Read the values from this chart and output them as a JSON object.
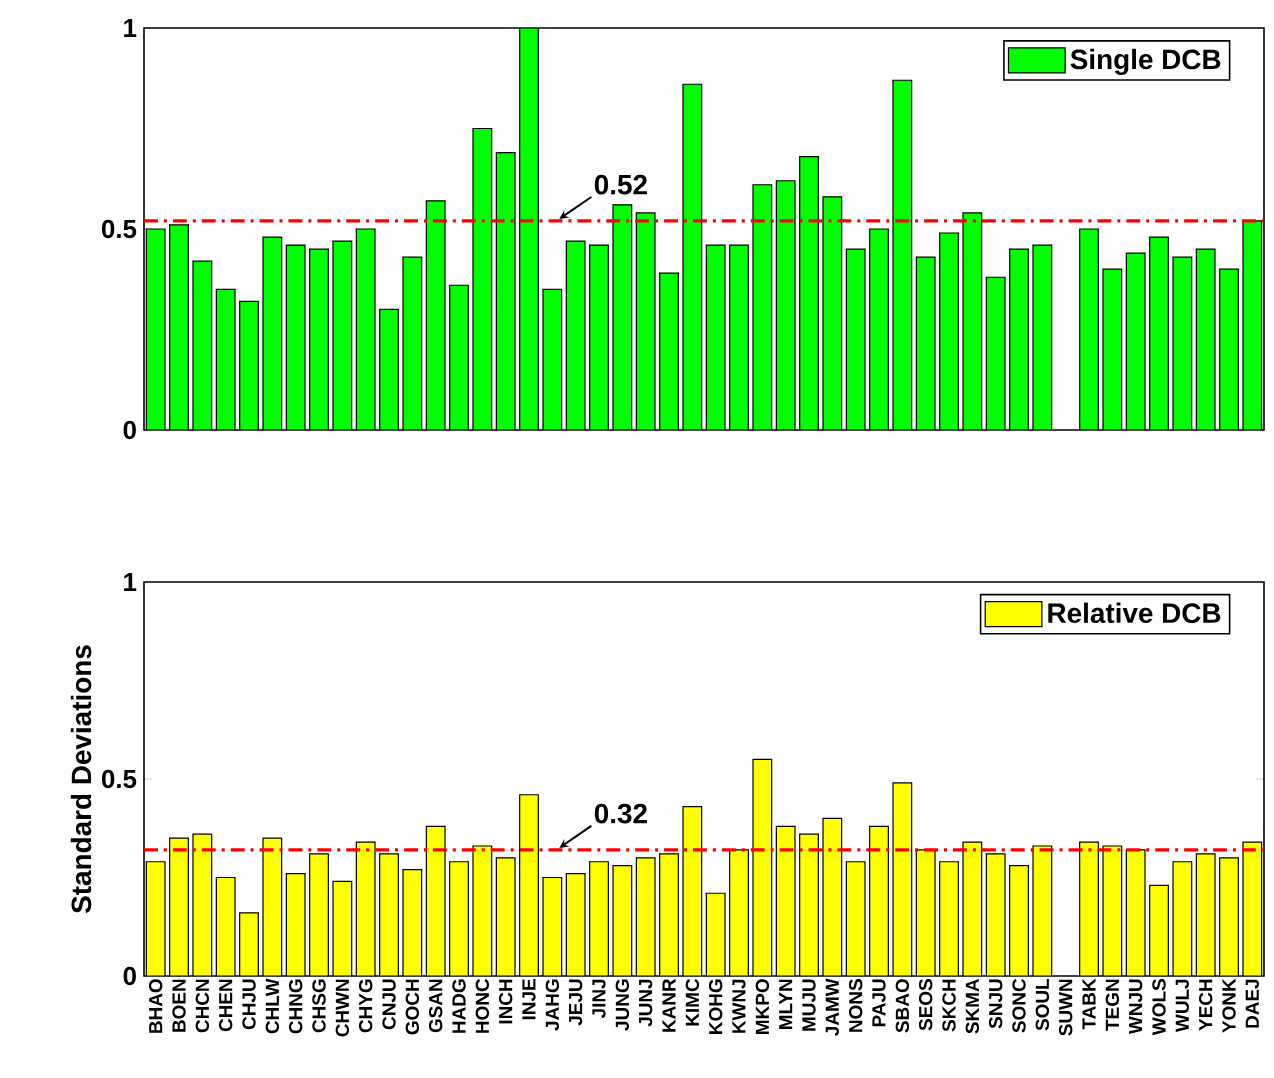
{
  "chart_data": [
    {
      "type": "bar",
      "categories": [
        null,
        null,
        null,
        null,
        null,
        null,
        null,
        null,
        null,
        null,
        null,
        null,
        null,
        null,
        null,
        null,
        null,
        null,
        null,
        null,
        null,
        null,
        null,
        null,
        null,
        null,
        null,
        null,
        null,
        null,
        null,
        null,
        null,
        null,
        null,
        null,
        null,
        null,
        null,
        null,
        null,
        null,
        null,
        null,
        null,
        null,
        null,
        null
      ],
      "series": [
        {
          "name": "Single DCB",
          "color": "#00ff00",
          "values": [
            0.5,
            0.51,
            0.42,
            0.35,
            0.32,
            0.48,
            0.46,
            0.45,
            0.47,
            0.5,
            0.3,
            0.43,
            0.57,
            0.36,
            0.75,
            0.69,
            1.0,
            0.35,
            0.47,
            0.46,
            0.56,
            0.54,
            0.39,
            0.86,
            0.46,
            0.46,
            0.61,
            0.62,
            0.68,
            0.58,
            0.45,
            0.5,
            0.87,
            0.43,
            0.49,
            0.54,
            0.38,
            0.45,
            0.46,
            null,
            0.5,
            0.4,
            0.44,
            0.48,
            0.43,
            0.45,
            0.4,
            0.52
          ]
        }
      ],
      "ylim": [
        0,
        1
      ],
      "yticks": [
        0,
        0.5,
        1
      ],
      "tick_labels": "y",
      "legend": "top right",
      "ref_lines": [
        {
          "axis": "y",
          "value": 0.52,
          "label": "0.52",
          "color": "#ff0000",
          "line_style": "dashdot"
        }
      ]
    },
    {
      "type": "bar",
      "ylabel": "Standard Deviations",
      "categories": [
        "BHAO",
        "BOEN",
        "CHCN",
        "CHEN",
        "CHJU",
        "CHLW",
        "CHNG",
        "CHSG",
        "CHWN",
        "CHYG",
        "CNJU",
        "GOCH",
        "GSAN",
        "HADG",
        "HONC",
        "INCH",
        "INJE",
        "JAHG",
        "JEJU",
        "JINJ",
        "JUNG",
        "JUNJ",
        "KANR",
        "KIMC",
        "KOHG",
        "KWNJ",
        "MKPO",
        "MLYN",
        "MUJU",
        "JAMW",
        "NONS",
        "PAJU",
        "SBAO",
        "SEOS",
        "SKCH",
        "SKMA",
        "SNJU",
        "SONC",
        "SOUL",
        "SUWN",
        "TABK",
        "TEGN",
        "WNJU",
        "WOLS",
        "WULJ",
        "YECH",
        "YONK",
        "DAEJ"
      ],
      "series": [
        {
          "name": "Relative DCB",
          "color": "#ffff00",
          "values": [
            0.29,
            0.35,
            0.36,
            0.25,
            0.16,
            0.35,
            0.26,
            0.31,
            0.24,
            0.34,
            0.31,
            0.27,
            0.38,
            0.29,
            0.33,
            0.3,
            0.46,
            0.25,
            0.26,
            0.29,
            0.28,
            0.3,
            0.31,
            0.43,
            0.21,
            0.32,
            0.55,
            0.38,
            0.36,
            0.4,
            0.29,
            0.38,
            0.49,
            0.32,
            0.29,
            0.34,
            0.31,
            0.28,
            0.33,
            null,
            0.34,
            0.33,
            0.32,
            0.23,
            0.29,
            0.31,
            0.3,
            0.34
          ]
        }
      ],
      "ylim": [
        0,
        1
      ],
      "yticks": [
        0,
        0.5,
        1
      ],
      "legend": "top right",
      "ref_lines": [
        {
          "axis": "y",
          "value": 0.32,
          "label": "0.32",
          "color": "#ff0000",
          "line_style": "dashdot"
        }
      ]
    }
  ]
}
